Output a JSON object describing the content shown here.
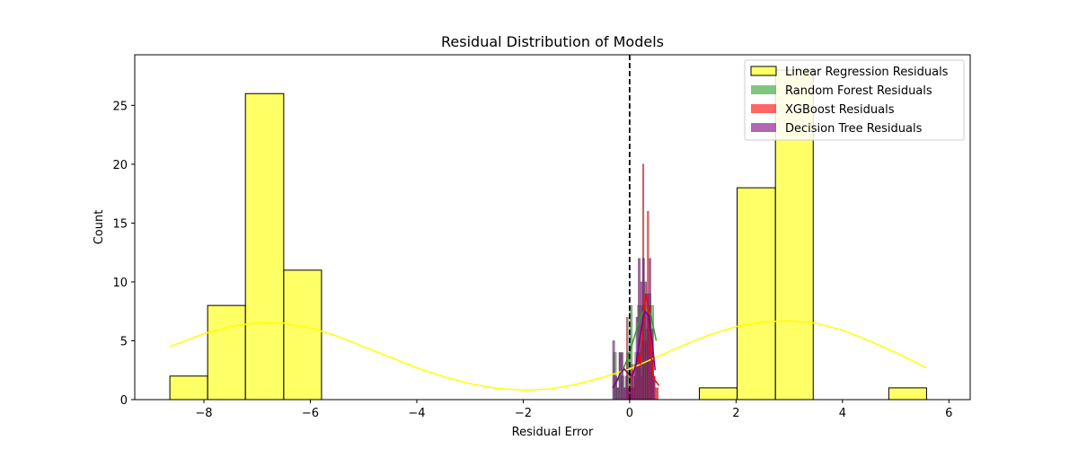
{
  "chart_data": {
    "type": "bar",
    "title": "Residual Distribution of Models",
    "xlabel": "Residual Error",
    "ylabel": "Count",
    "xlim": [
      -9.3,
      6.4
    ],
    "ylim": [
      0,
      29.3
    ],
    "xticks": [
      -8,
      -6,
      -4,
      -2,
      0,
      2,
      4,
      6
    ],
    "yticks": [
      0,
      5,
      10,
      15,
      20,
      25
    ],
    "xtick_labels": [
      "−8",
      "−6",
      "−4",
      "−2",
      "0",
      "2",
      "4",
      "6"
    ],
    "ytick_labels": [
      "0",
      "5",
      "10",
      "15",
      "20",
      "25"
    ],
    "grid": false,
    "legend_position": "top-right",
    "reference_line": {
      "x": 0,
      "style": "dashed",
      "color": "#000000"
    },
    "series": [
      {
        "name": "Linear Regression Residuals",
        "color": "#ffff00",
        "edge_color": "#000000",
        "bin_edges": [
          -8.64,
          -7.93,
          -7.22,
          -6.5,
          -5.79,
          -5.08,
          -4.37,
          -3.66,
          -2.95,
          -2.24,
          -1.53,
          -0.82,
          -0.11,
          0.6,
          1.31,
          2.02,
          2.74,
          3.45,
          4.16,
          4.87,
          5.58
        ],
        "counts": [
          2,
          8,
          26,
          11,
          0,
          0,
          0,
          0,
          0,
          0,
          0,
          0,
          0,
          0,
          1,
          18,
          28,
          0,
          0,
          1
        ],
        "kde_x": [
          -8.64,
          -8.0,
          -7.5,
          -7.0,
          -6.5,
          -6.0,
          -5.5,
          -5.0,
          -4.5,
          -4.0,
          -3.5,
          -3.0,
          -2.5,
          -2.0,
          -1.5,
          -1.0,
          -0.5,
          0.0,
          0.5,
          1.0,
          1.5,
          2.0,
          2.5,
          3.0,
          3.5,
          4.0,
          4.5,
          5.0,
          5.58
        ],
        "kde_y": [
          4.5,
          5.6,
          6.2,
          6.55,
          6.5,
          6.1,
          5.4,
          4.5,
          3.6,
          2.7,
          1.95,
          1.35,
          0.95,
          0.8,
          0.9,
          1.3,
          1.9,
          2.6,
          3.6,
          4.6,
          5.5,
          6.2,
          6.6,
          6.7,
          6.5,
          5.9,
          5.0,
          4.0,
          2.7
        ]
      },
      {
        "name": "Random Forest Residuals",
        "color": "#2ca02c",
        "edge_color": "#555555",
        "bin_edges": [
          -0.3,
          -0.25,
          -0.2,
          -0.15,
          -0.1,
          -0.05,
          0.0,
          0.05,
          0.1,
          0.15,
          0.2,
          0.25,
          0.3,
          0.35,
          0.4,
          0.45
        ],
        "counts": [
          4,
          1,
          4,
          2,
          1,
          4,
          8,
          1,
          4,
          8,
          8,
          8,
          6,
          9,
          8
        ],
        "kde_x": [
          -0.3,
          -0.2,
          -0.1,
          0.0,
          0.1,
          0.2,
          0.3,
          0.4,
          0.5
        ],
        "kde_y": [
          1.2,
          1.8,
          2.8,
          4.0,
          5.5,
          7.0,
          7.8,
          7.2,
          5.0
        ]
      },
      {
        "name": "XGBoost Residuals",
        "color": "#ff0000",
        "edge_color": "#555555",
        "bin_edges": [
          -0.06,
          -0.03,
          0.0,
          0.03,
          0.06,
          0.09,
          0.12,
          0.15,
          0.18,
          0.21,
          0.24,
          0.27,
          0.3,
          0.33,
          0.36,
          0.39,
          0.42,
          0.45,
          0.48,
          0.51,
          0.54
        ],
        "counts": [
          7,
          1,
          2,
          3,
          1,
          2,
          3,
          4,
          4,
          2,
          20,
          5,
          5,
          16,
          8,
          3,
          4,
          2,
          1,
          1
        ],
        "kde_x": [
          0.0,
          0.05,
          0.1,
          0.15,
          0.2,
          0.25,
          0.3,
          0.35,
          0.4,
          0.45,
          0.5,
          0.55
        ],
        "kde_y": [
          2.0,
          2.3,
          2.6,
          3.6,
          3.0,
          5.5,
          9.0,
          7.8,
          4.0,
          1.8,
          1.5,
          1.2
        ]
      },
      {
        "name": "Decision Tree Residuals",
        "color": "#800080",
        "edge_color": "#555555",
        "bin_edges": [
          -0.32,
          -0.28,
          -0.24,
          -0.2,
          -0.16,
          -0.12,
          -0.08,
          -0.04,
          0.0,
          0.04,
          0.08,
          0.12,
          0.16,
          0.2,
          0.24,
          0.28,
          0.32,
          0.36,
          0.4,
          0.44,
          0.48
        ],
        "counts": [
          5,
          2,
          1,
          4,
          4,
          1,
          2,
          1,
          1,
          2,
          3,
          7,
          12,
          10,
          12,
          10,
          9,
          12,
          6,
          2
        ],
        "kde_x": [
          -0.32,
          -0.25,
          -0.18,
          -0.1,
          -0.02,
          0.05,
          0.12,
          0.2,
          0.28,
          0.35,
          0.42,
          0.48
        ],
        "kde_y": [
          1.0,
          1.5,
          2.2,
          2.6,
          2.2,
          2.0,
          3.0,
          5.5,
          7.5,
          7.2,
          5.0,
          2.5
        ]
      }
    ]
  }
}
